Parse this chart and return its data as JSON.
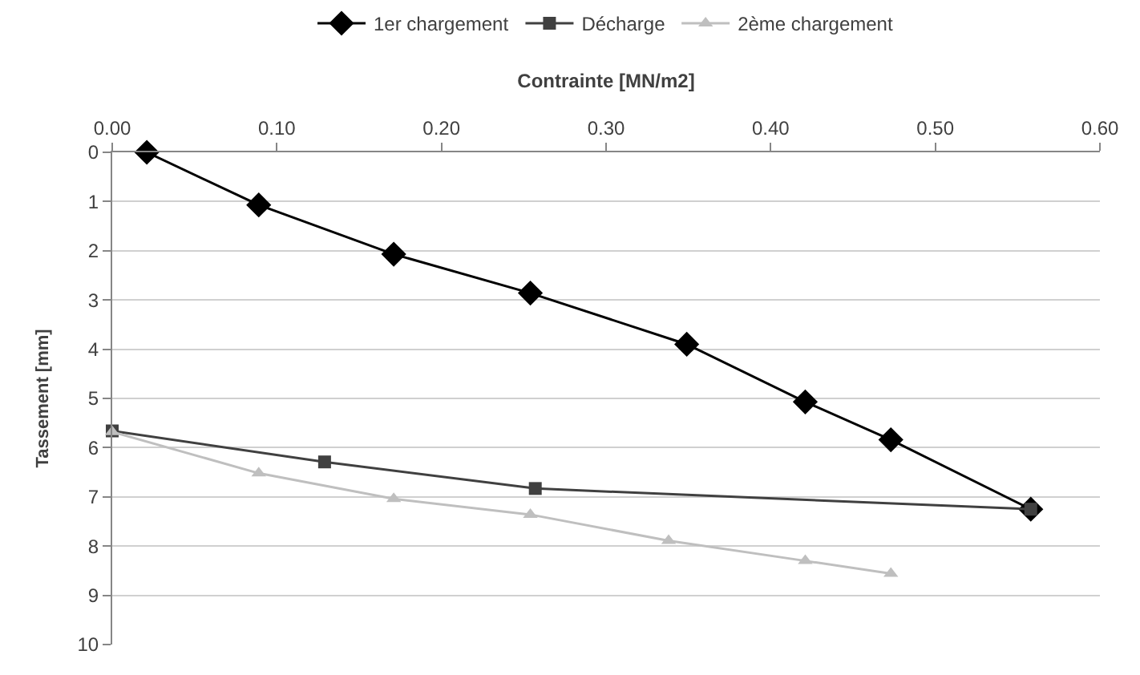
{
  "chart_data": {
    "type": "line",
    "xlabel": "Contrainte [MN/m2]",
    "ylabel": "Tassement [mm]",
    "xlim": [
      0,
      0.6
    ],
    "xticks": [
      {
        "value": 0,
        "label": "0.00"
      },
      {
        "value": 0.1,
        "label": "0.10"
      },
      {
        "value": 0.2,
        "label": "0.20"
      },
      {
        "value": 0.3,
        "label": "0.30"
      },
      {
        "value": 0.4,
        "label": "0.40"
      },
      {
        "value": 0.5,
        "label": "0.50"
      },
      {
        "value": 0.6,
        "label": "0.60"
      }
    ],
    "ylim": [
      10,
      0
    ],
    "yticks": [
      0,
      1,
      2,
      3,
      4,
      5,
      6,
      7,
      8,
      9,
      10
    ],
    "grid": "y",
    "legend": "top",
    "series": [
      {
        "name": "1er chargement",
        "color": "#000000",
        "marker": "diamond",
        "x": [
          0.021,
          0.089,
          0.171,
          0.254,
          0.349,
          0.421,
          0.473,
          0.558
        ],
        "values": [
          0,
          1.07,
          2.07,
          2.86,
          3.9,
          5.07,
          5.84,
          7.25
        ]
      },
      {
        "name": "Décharge",
        "color": "#404040",
        "marker": "square",
        "x": [
          0.0,
          0.129,
          0.257,
          0.558
        ],
        "values": [
          5.66,
          6.29,
          6.83,
          7.25
        ]
      },
      {
        "name": "2ème chargement",
        "color": "#bfbfbf",
        "marker": "triangle",
        "x": [
          0.0,
          0.089,
          0.171,
          0.254,
          0.338,
          0.421,
          0.473
        ],
        "values": [
          5.68,
          6.52,
          7.04,
          7.36,
          7.89,
          8.3,
          8.56
        ]
      }
    ]
  }
}
